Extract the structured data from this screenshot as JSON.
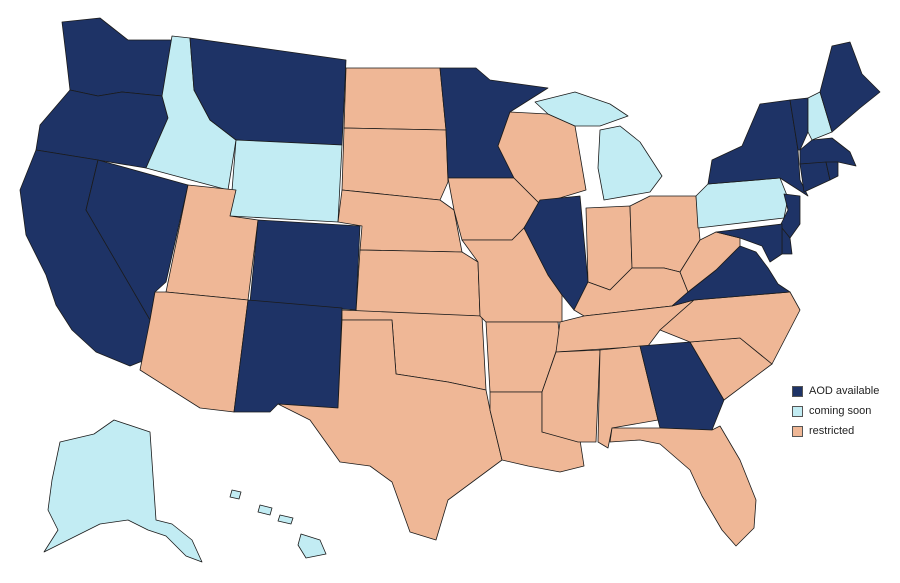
{
  "colors": {
    "available": "#1e3366",
    "coming_soon": "#c2ecf3",
    "restricted": "#efb796"
  },
  "legend": {
    "items": [
      {
        "label": "AOD available",
        "status": "available"
      },
      {
        "label": "coming soon",
        "status": "coming_soon"
      },
      {
        "label": "restricted",
        "status": "restricted"
      }
    ]
  },
  "states": {
    "WA": "available",
    "OR": "available",
    "CA": "available",
    "NV": "available",
    "ID": "coming_soon",
    "MT": "available",
    "WY": "coming_soon",
    "UT": "restricted",
    "AZ": "restricted",
    "CO": "available",
    "NM": "available",
    "ND": "restricted",
    "SD": "restricted",
    "NE": "restricted",
    "KS": "restricted",
    "OK": "restricted",
    "TX": "restricted",
    "MN": "available",
    "IA": "restricted",
    "MO": "restricted",
    "AR": "restricted",
    "LA": "restricted",
    "WI": "restricted",
    "IL": "available",
    "MI": "coming_soon",
    "IN": "restricted",
    "OH": "restricted",
    "KY": "restricted",
    "TN": "restricted",
    "MS": "restricted",
    "AL": "restricted",
    "GA": "available",
    "FL": "restricted",
    "SC": "restricted",
    "NC": "restricted",
    "VA": "available",
    "WV": "restricted",
    "PA": "coming_soon",
    "NY": "available",
    "VT": "available",
    "NH": "coming_soon",
    "ME": "available",
    "MA": "available",
    "CT": "available",
    "RI": "available",
    "NJ": "available",
    "DE": "available",
    "MD": "available",
    "AK": "coming_soon",
    "HI": "coming_soon"
  }
}
